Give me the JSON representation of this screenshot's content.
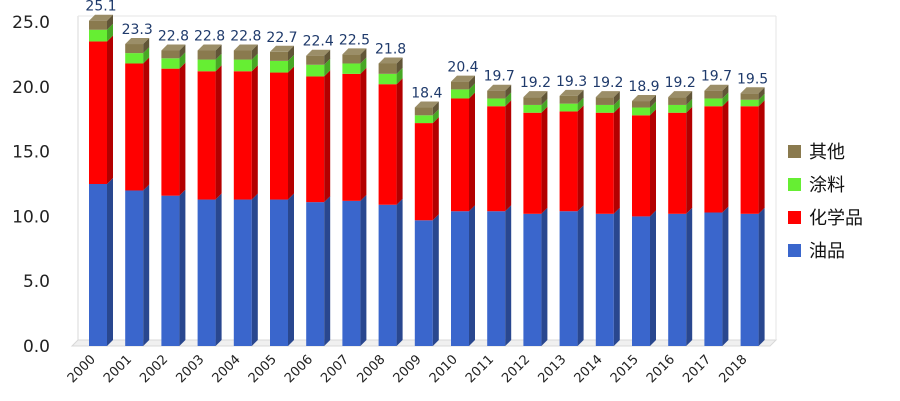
{
  "chart_data": {
    "type": "bar",
    "stacked": true,
    "categories": [
      "2000",
      "2001",
      "2002",
      "2003",
      "2004",
      "2005",
      "2006",
      "2007",
      "2008",
      "2009",
      "2010",
      "2011",
      "2012",
      "2013",
      "2014",
      "2015",
      "2016",
      "2017",
      "2018"
    ],
    "totals": [
      25.1,
      23.3,
      22.8,
      22.8,
      22.8,
      22.7,
      22.4,
      22.5,
      21.8,
      18.4,
      20.4,
      19.7,
      19.2,
      19.3,
      19.2,
      18.9,
      19.2,
      19.7,
      19.5
    ],
    "total_labels": [
      "25.1",
      "23.3",
      "22.8",
      "22.8",
      "22.8",
      "22.7",
      "22.4",
      "22.5",
      "21.8",
      "18.4",
      "20.4",
      "19.7",
      "19.2",
      "19.3",
      "19.2",
      "18.9",
      "19.2",
      "19.7",
      "19.5"
    ],
    "series": [
      {
        "name": "油品",
        "color": "#3a66cc",
        "values": [
          12.5,
          12.0,
          11.6,
          11.3,
          11.3,
          11.3,
          11.1,
          11.2,
          10.9,
          9.7,
          10.4,
          10.4,
          10.2,
          10.4,
          10.2,
          10.0,
          10.2,
          10.3,
          10.2
        ]
      },
      {
        "name": "化学品",
        "color": "#ff0000",
        "values": [
          11.0,
          9.8,
          9.8,
          9.9,
          9.9,
          9.8,
          9.7,
          9.8,
          9.3,
          7.5,
          8.7,
          8.1,
          7.8,
          7.7,
          7.8,
          7.8,
          7.8,
          8.2,
          8.3
        ]
      },
      {
        "name": "涂料",
        "color": "#66ee33",
        "values": [
          0.9,
          0.8,
          0.8,
          0.9,
          0.9,
          0.9,
          0.9,
          0.8,
          0.8,
          0.6,
          0.7,
          0.6,
          0.6,
          0.6,
          0.6,
          0.6,
          0.6,
          0.6,
          0.5
        ]
      },
      {
        "name": "其他",
        "color": "#8a7a4e",
        "values": [
          0.7,
          0.7,
          0.6,
          0.7,
          0.7,
          0.7,
          0.7,
          0.7,
          0.8,
          0.6,
          0.6,
          0.6,
          0.6,
          0.6,
          0.6,
          0.5,
          0.6,
          0.6,
          0.5
        ]
      }
    ],
    "legend_order": [
      "其他",
      "涂料",
      "化学品",
      "油品"
    ],
    "y_ticks": [
      "0.0",
      "5.0",
      "10.0",
      "15.0",
      "20.0",
      "25.0"
    ],
    "ylim": [
      0,
      25
    ],
    "legend_position": "right",
    "grid": false,
    "title": "",
    "xlabel": "",
    "ylabel": ""
  }
}
